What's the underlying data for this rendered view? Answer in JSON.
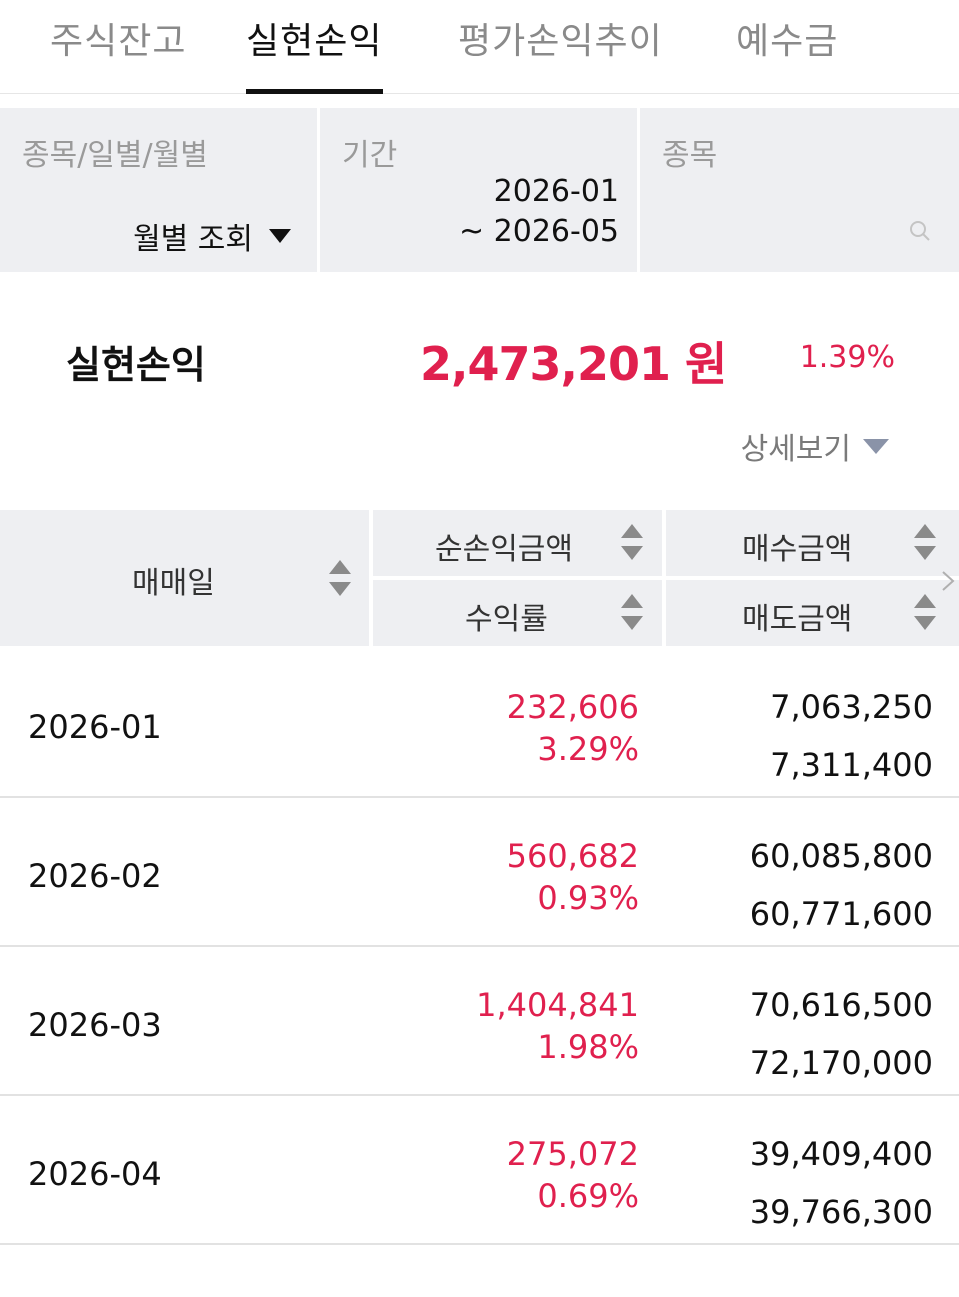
{
  "tabs": [
    {
      "label": "주식잔고",
      "active": false
    },
    {
      "label": "실현손익",
      "active": true
    },
    {
      "label": "평가손익추이",
      "active": false
    },
    {
      "label": "예수금",
      "active": false
    }
  ],
  "filters": {
    "view_label": "종목/일별/월별",
    "view_value": "월별 조회",
    "period_label": "기간",
    "period_from": "2026-01",
    "period_to": "~ 2026-05",
    "stock_label": "종목",
    "stock_value": "",
    "search_icon": "search-icon"
  },
  "summary": {
    "label": "실현손익",
    "amount": "2,473,201 원",
    "rate": "1.39%",
    "detail_label": "상세보기"
  },
  "table": {
    "headers": {
      "date": "매매일",
      "net_profit": "순손익금액",
      "return_rate": "수익률",
      "buy_amount": "매수금액",
      "sell_amount": "매도금액"
    },
    "rows": [
      {
        "date": "2026-01",
        "net_profit": "232,606",
        "return_rate": "3.29%",
        "buy_amount": "7,063,250",
        "sell_amount": "7,311,400"
      },
      {
        "date": "2026-02",
        "net_profit": "560,682",
        "return_rate": "0.93%",
        "buy_amount": "60,085,800",
        "sell_amount": "60,771,600"
      },
      {
        "date": "2026-03",
        "net_profit": "1,404,841",
        "return_rate": "1.98%",
        "buy_amount": "70,616,500",
        "sell_amount": "72,170,000"
      },
      {
        "date": "2026-04",
        "net_profit": "275,072",
        "return_rate": "0.69%",
        "buy_amount": "39,409,400",
        "sell_amount": "39,766,300"
      }
    ]
  },
  "colors": {
    "profit": "#e0204e",
    "header_bg": "#eeeff2",
    "active_tab": "#111111"
  }
}
